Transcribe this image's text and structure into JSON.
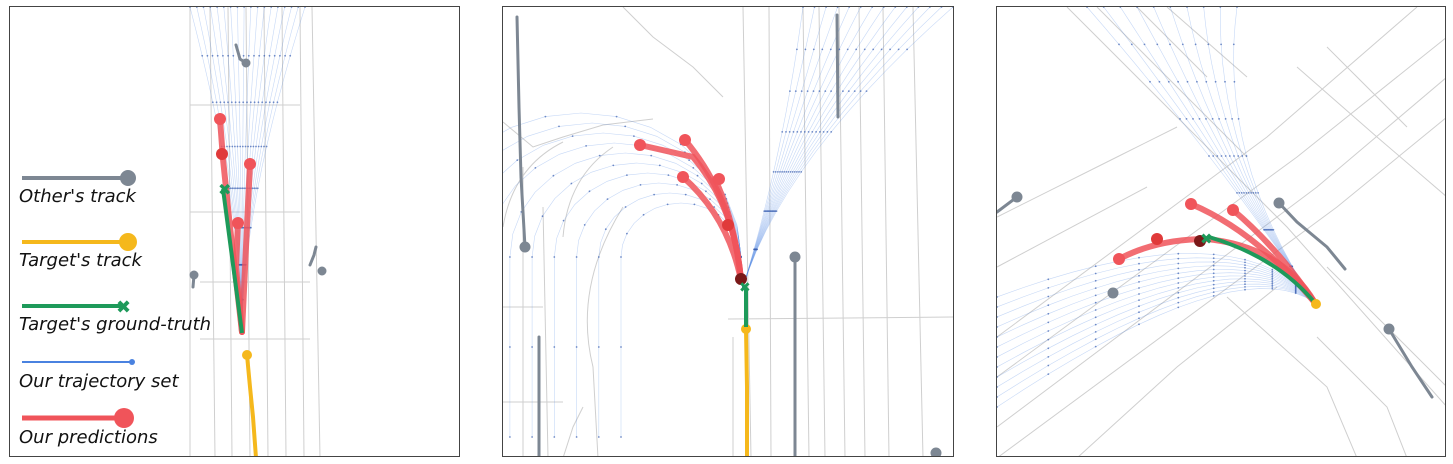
{
  "legend": {
    "items": [
      {
        "label": "Other's track",
        "color": "#7d8793",
        "marker": "dot"
      },
      {
        "label": "Target's track",
        "color": "#f5b81c",
        "marker": "dot"
      },
      {
        "label": "Target's ground-truth",
        "color": "#1e9a5a",
        "marker": "cross"
      },
      {
        "label": "Our trajectory set",
        "color": "#4a82e0",
        "marker": "small-dot"
      },
      {
        "label": "Our predictions",
        "color": "#f0545a",
        "marker": "dot"
      }
    ]
  },
  "colors": {
    "map_lane": "#cfcfcf",
    "other_track": "#7d8793",
    "target_track": "#f5b81c",
    "ground_truth": "#1e9a5a",
    "trajectory_set": "#5b8fe6",
    "prediction": "#f0545a",
    "prediction_dark": "#c23a3a"
  },
  "panels": [
    {
      "name": "straight-road-scene"
    },
    {
      "name": "u-turn-scene"
    },
    {
      "name": "intersection-turn-scene"
    }
  ]
}
